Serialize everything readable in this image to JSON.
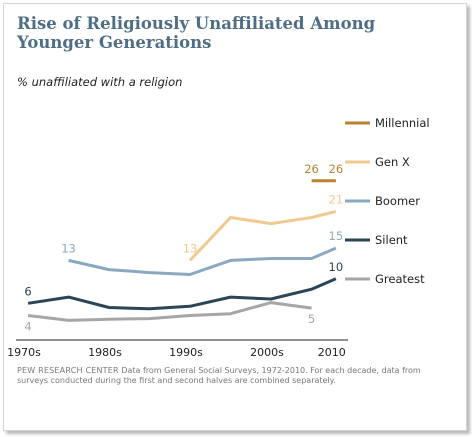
{
  "title": "Rise of Religiously Unaffiliated Among Younger Generations",
  "subtitle": "% unaffiliated with a religion",
  "source": {
    "org": "PEW RESEARCH CENTER",
    "text": " Data from General Social Surveys, 1972-2010. For each decade, data from surveys conducted during the first and second halves are combined separately."
  },
  "chart_data": {
    "type": "line",
    "title": "Rise of Religiously Unaffiliated Among Younger Generations",
    "subtitle": "% unaffiliated with a religion",
    "xlabel": "",
    "ylabel": "",
    "x_ticks": [
      "1970s",
      "1980s",
      "1990s",
      "2000s",
      "2010"
    ],
    "x_tick_values": [
      1972,
      1982,
      1992,
      2002,
      2010
    ],
    "x_range": [
      1972,
      2012
    ],
    "y_range": [
      0,
      32
    ],
    "grid": false,
    "legend_position": "right",
    "series": [
      {
        "name": "Millennial",
        "color": "#b8822e",
        "points": [
          [
            2007.5,
            26
          ],
          [
            2010.5,
            26
          ]
        ],
        "labels": [
          {
            "x": 2007.5,
            "text": "26",
            "pos": "above"
          },
          {
            "x": 2010.5,
            "text": "26",
            "pos": "above"
          }
        ]
      },
      {
        "name": "Gen X",
        "color": "#f1c98f",
        "points": [
          [
            1992.5,
            13
          ],
          [
            1997.5,
            20
          ],
          [
            2002.5,
            19
          ],
          [
            2007.5,
            20
          ],
          [
            2010.5,
            21
          ]
        ],
        "labels": [
          {
            "x": 1992.5,
            "text": "13",
            "pos": "above"
          },
          {
            "x": 2010.5,
            "text": "21",
            "pos": "above"
          }
        ]
      },
      {
        "name": "Boomer",
        "color": "#8aa9c0",
        "points": [
          [
            1977.5,
            13
          ],
          [
            1982.5,
            11.5
          ],
          [
            1987.5,
            11
          ],
          [
            1992.5,
            10.7
          ],
          [
            1997.5,
            13
          ],
          [
            2002.5,
            13.3
          ],
          [
            2007.5,
            13.3
          ],
          [
            2010.5,
            15
          ]
        ],
        "labels": [
          {
            "x": 1977.5,
            "text": "13",
            "pos": "above"
          },
          {
            "x": 2010.5,
            "text": "15",
            "pos": "above"
          }
        ]
      },
      {
        "name": "Silent",
        "color": "#2b4557",
        "points": [
          [
            1972.5,
            6
          ],
          [
            1977.5,
            7
          ],
          [
            1982.5,
            5.3
          ],
          [
            1987.5,
            5.1
          ],
          [
            1992.5,
            5.5
          ],
          [
            1997.5,
            7
          ],
          [
            2002.5,
            6.7
          ],
          [
            2007.5,
            8.3
          ],
          [
            2010.5,
            10
          ]
        ],
        "labels": [
          {
            "x": 1972.5,
            "text": "6",
            "pos": "above"
          },
          {
            "x": 2010.5,
            "text": "10",
            "pos": "above"
          }
        ]
      },
      {
        "name": "Greatest",
        "color": "#a6a6a6",
        "points": [
          [
            1972.5,
            4
          ],
          [
            1977.5,
            3.2
          ],
          [
            1982.5,
            3.4
          ],
          [
            1987.5,
            3.5
          ],
          [
            1992.5,
            4
          ],
          [
            1997.5,
            4.3
          ],
          [
            2002.5,
            6.1
          ],
          [
            2007.5,
            5.2
          ]
        ],
        "labels": [
          {
            "x": 1972.5,
            "text": "4",
            "pos": "below"
          },
          {
            "x": 2007.5,
            "text": "5",
            "pos": "below"
          }
        ]
      }
    ]
  }
}
